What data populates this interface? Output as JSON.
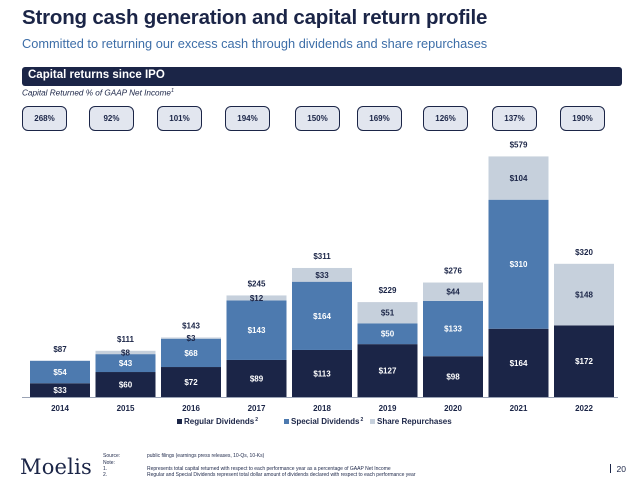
{
  "header": {
    "title": "Strong cash generation and capital return profile",
    "subtitle": "Committed to returning our excess cash through dividends and share repurchases"
  },
  "section_banner": "Capital returns since IPO",
  "pct_caption": "Capital Returned % of GAAP Net Income",
  "pct_caption_note": "1",
  "pct_of_net_income": [
    "268%",
    "92%",
    "101%",
    "194%",
    "150%",
    "169%",
    "126%",
    "137%",
    "190%"
  ],
  "colors": {
    "regular": "#1b2547",
    "special": "#4d7aaf",
    "repurchase": "#c6d0dc",
    "navy": "#1b2547"
  },
  "chart_data": {
    "type": "bar",
    "stacked": true,
    "title": "Capital returns since IPO",
    "categories": [
      "2014",
      "2015",
      "2016",
      "2017",
      "2018",
      "2019",
      "2020",
      "2021",
      "2022"
    ],
    "series": [
      {
        "name": "Regular Dividends",
        "note": "2",
        "values": [
          33,
          60,
          72,
          89,
          113,
          127,
          98,
          164,
          172
        ]
      },
      {
        "name": "Special Dividends",
        "note": "2",
        "values": [
          54,
          43,
          68,
          143,
          164,
          50,
          133,
          310,
          0
        ]
      },
      {
        "name": "Share Repurchases",
        "note": "",
        "values": [
          0,
          8,
          3,
          12,
          33,
          51,
          44,
          104,
          148
        ]
      }
    ],
    "segment_labels": [
      [
        "$33",
        "$60",
        "$72",
        "$89",
        "$113",
        "$127",
        "$98",
        "$164",
        "$172"
      ],
      [
        "$54",
        "$43",
        "$68",
        "$143",
        "$164",
        "$50",
        "$133",
        "$310",
        ""
      ],
      [
        "",
        "$8",
        "$3",
        "$12",
        "$33",
        "$51",
        "$44",
        "$104",
        "$148"
      ]
    ],
    "totals": [
      "$87",
      "$111",
      "$143",
      "$245",
      "$311",
      "$229",
      "$276",
      "$579",
      "$320"
    ],
    "ylim": [
      0,
      579
    ],
    "legend_position": "bottom"
  },
  "footer": {
    "logo": "Moelis",
    "source_label": "Source:",
    "source_text": "public filings (earnings press releases, 10-Qs, 10-Ks)",
    "note_label": "Note:",
    "notes": [
      {
        "num": "1.",
        "text": "Represents total capital returned with respect to each performance year as a percentage of GAAP Net Income"
      },
      {
        "num": "2.",
        "text": "Regular and Special Dividends represent total dollar amount of dividends declared with respect to each performance year"
      }
    ],
    "page_number": "20"
  }
}
